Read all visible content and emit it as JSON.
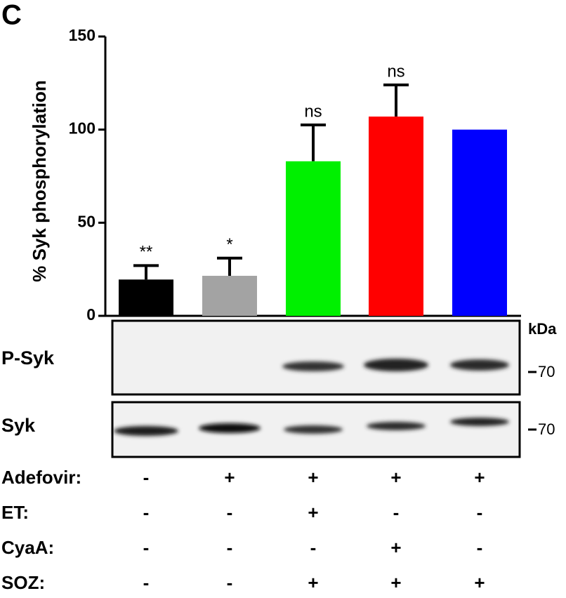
{
  "chart_data": {
    "type": "bar",
    "panel_label": "C",
    "ylabel": "% Syk phosphorylation",
    "categories": [
      null,
      null,
      null,
      null,
      null
    ],
    "values": [
      19.5,
      21.5,
      83,
      107,
      100
    ],
    "errors": [
      7.5,
      9.5,
      19.5,
      17,
      null
    ],
    "annotations": [
      "**",
      "*",
      "ns",
      "ns",
      null
    ],
    "colors": [
      "#000000",
      "#a3a3a3",
      "#00f000",
      "#ff0000",
      "#0000ff"
    ],
    "ylim": [
      0,
      150
    ],
    "yticks": [
      0,
      50,
      100,
      150
    ]
  },
  "blots": {
    "unit": "kDa",
    "rows": [
      {
        "label": "P-Syk",
        "marker": "70"
      },
      {
        "label": "Syk",
        "marker": "70"
      }
    ]
  },
  "treatments": [
    {
      "label": "Adefovir:",
      "signs": [
        "-",
        "+",
        "+",
        "+",
        "+"
      ]
    },
    {
      "label": "ET:",
      "signs": [
        "-",
        "-",
        "+",
        "-",
        "-"
      ]
    },
    {
      "label": "CyaA:",
      "signs": [
        "-",
        "-",
        "-",
        "+",
        "-"
      ]
    },
    {
      "label": "SOZ:",
      "signs": [
        "-",
        "-",
        "+",
        "+",
        "+"
      ]
    }
  ]
}
